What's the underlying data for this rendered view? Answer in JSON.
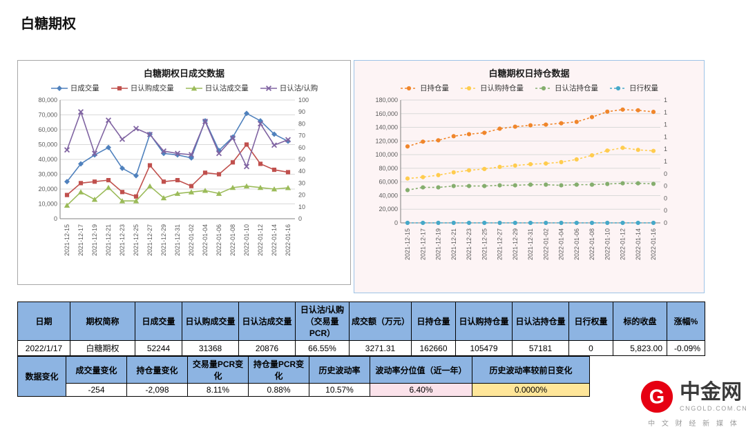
{
  "page": {
    "title": "白糖期权"
  },
  "chart_data": [
    {
      "type": "line",
      "title": "白糖期权日成交数据",
      "categories": [
        "2021-12-15",
        "2021-12-17",
        "2021-12-19",
        "2021-12-21",
        "2021-12-23",
        "2021-12-25",
        "2021-12-27",
        "2021-12-29",
        "2021-12-31",
        "2022-01-02",
        "2022-01-04",
        "2022-01-06",
        "2022-01-08",
        "2022-01-10",
        "2022-01-12",
        "2022-01-14",
        "2022-01-16"
      ],
      "left_axis": {
        "min": 0,
        "max": 80000,
        "step": 10000
      },
      "right_axis": {
        "min": 0,
        "max": 100,
        "step": 10,
        "round": false
      },
      "legend_position": "top",
      "grid": true,
      "series": [
        {
          "name": "日成交量",
          "marker": "diamond",
          "color": "#4F81BD",
          "axis": "left",
          "dashed": false,
          "values": [
            25000,
            37000,
            43000,
            48000,
            34000,
            29000,
            57000,
            44000,
            43000,
            41000,
            66000,
            46000,
            55000,
            71000,
            66000,
            57000,
            52244
          ]
        },
        {
          "name": "日认购成交量",
          "marker": "square",
          "color": "#C0504D",
          "axis": "left",
          "dashed": false,
          "values": [
            16000,
            24000,
            25000,
            26000,
            18000,
            15000,
            36000,
            25000,
            26000,
            22000,
            31000,
            30000,
            38000,
            50000,
            37000,
            33000,
            31368
          ]
        },
        {
          "name": "日认沽成交量",
          "marker": "triangle",
          "color": "#9BBB59",
          "axis": "left",
          "dashed": false,
          "values": [
            9000,
            18000,
            13000,
            21000,
            12000,
            12000,
            22000,
            14000,
            17000,
            18000,
            19000,
            17000,
            21000,
            22000,
            21000,
            20000,
            20876
          ]
        },
        {
          "name": "日认沽/认购",
          "marker": "x",
          "color": "#8064A2",
          "axis": "right",
          "dashed": false,
          "values": [
            58,
            90,
            55,
            83,
            67,
            76,
            71,
            57,
            55,
            54,
            82,
            55,
            68,
            44,
            80,
            62,
            66.55
          ]
        }
      ]
    },
    {
      "type": "line",
      "title": "白糖期权日持仓数据",
      "categories": [
        "2021-12-15",
        "2021-12-17",
        "2021-12-19",
        "2021-12-21",
        "2021-12-23",
        "2021-12-25",
        "2021-12-27",
        "2021-12-29",
        "2021-12-31",
        "2022-01-02",
        "2022-01-04",
        "2022-01-06",
        "2022-01-08",
        "2022-01-10",
        "2022-01-12",
        "2022-01-14",
        "2022-01-16"
      ],
      "left_axis": {
        "min": 0,
        "max": 180000,
        "step": 20000
      },
      "right_axis": {
        "min": 0,
        "max": 1,
        "step": 0.1,
        "round": true
      },
      "legend_position": "top",
      "grid": true,
      "series": [
        {
          "name": "日持仓量",
          "marker": "circle",
          "color": "#F0862B",
          "axis": "left",
          "dashed": true,
          "values": [
            112000,
            119000,
            121000,
            127000,
            130000,
            132000,
            138000,
            141000,
            143000,
            144000,
            146000,
            148000,
            155000,
            163000,
            166000,
            165000,
            162660
          ]
        },
        {
          "name": "日认购持仓量",
          "marker": "circle",
          "color": "#FFCC4E",
          "axis": "left",
          "dashed": true,
          "values": [
            65000,
            67000,
            70000,
            74000,
            77000,
            79000,
            82000,
            84000,
            86000,
            87000,
            89000,
            93000,
            99000,
            106000,
            110000,
            107000,
            105479
          ]
        },
        {
          "name": "日认沽持仓量",
          "marker": "circle",
          "color": "#85AE6E",
          "axis": "left",
          "dashed": true,
          "values": [
            48000,
            52000,
            52000,
            54000,
            54000,
            54000,
            55000,
            55000,
            56000,
            56000,
            55000,
            56000,
            56000,
            57000,
            58000,
            58000,
            57181
          ]
        },
        {
          "name": "日行权量",
          "marker": "circle",
          "color": "#45A8C8",
          "axis": "left",
          "dashed": true,
          "values": [
            0,
            0,
            0,
            0,
            0,
            0,
            0,
            0,
            0,
            0,
            0,
            0,
            0,
            0,
            0,
            0,
            0
          ]
        }
      ]
    }
  ],
  "table1": {
    "headers": [
      "日期",
      "期权简称",
      "日成交量",
      "日认购成交量",
      "日认沽成交量",
      "日认沽/认购（交易量PCR）",
      "成交额（万元）",
      "日持仓量",
      "日认购持仓量",
      "日认沽持仓量",
      "日行权量",
      "标的收盘",
      "涨幅%"
    ],
    "rows": [
      [
        "2022/1/17",
        "白糖期权",
        "52244",
        "31368",
        "20876",
        "66.55%",
        "3271.31",
        "162660",
        "105479",
        "57181",
        "0",
        "5,823.00",
        "-0.09%"
      ]
    ]
  },
  "table2": {
    "label": "数据变化",
    "headers": [
      "成交量变化",
      "持仓量变化",
      "交易量PCR变化",
      "持仓量PCR变化",
      "历史波动率",
      "波动率分位值（近一年）",
      "历史波动率较前日变化"
    ],
    "values": [
      "-254",
      "-2,098",
      "8.11%",
      "0.88%",
      "10.57%",
      "6.40%",
      "0.0000%"
    ],
    "cell_bg": {
      "5": "#FBE2EA",
      "6": "#FFE699"
    }
  },
  "logo": {
    "name": "中金网",
    "domain": "CNGOLD.COM.CN",
    "tagline": "中 文 财 经 新 媒 体"
  },
  "colors": {
    "table_header_bg": "#8DB4E2",
    "highlight_pink": "#FBE2EA",
    "highlight_yellow": "#FFE699",
    "brand_red": "#E60012",
    "panel_border_left": "#A6A6A6",
    "panel_border_right": "#9DC3E6",
    "grid_line": "#D9D9D9"
  }
}
